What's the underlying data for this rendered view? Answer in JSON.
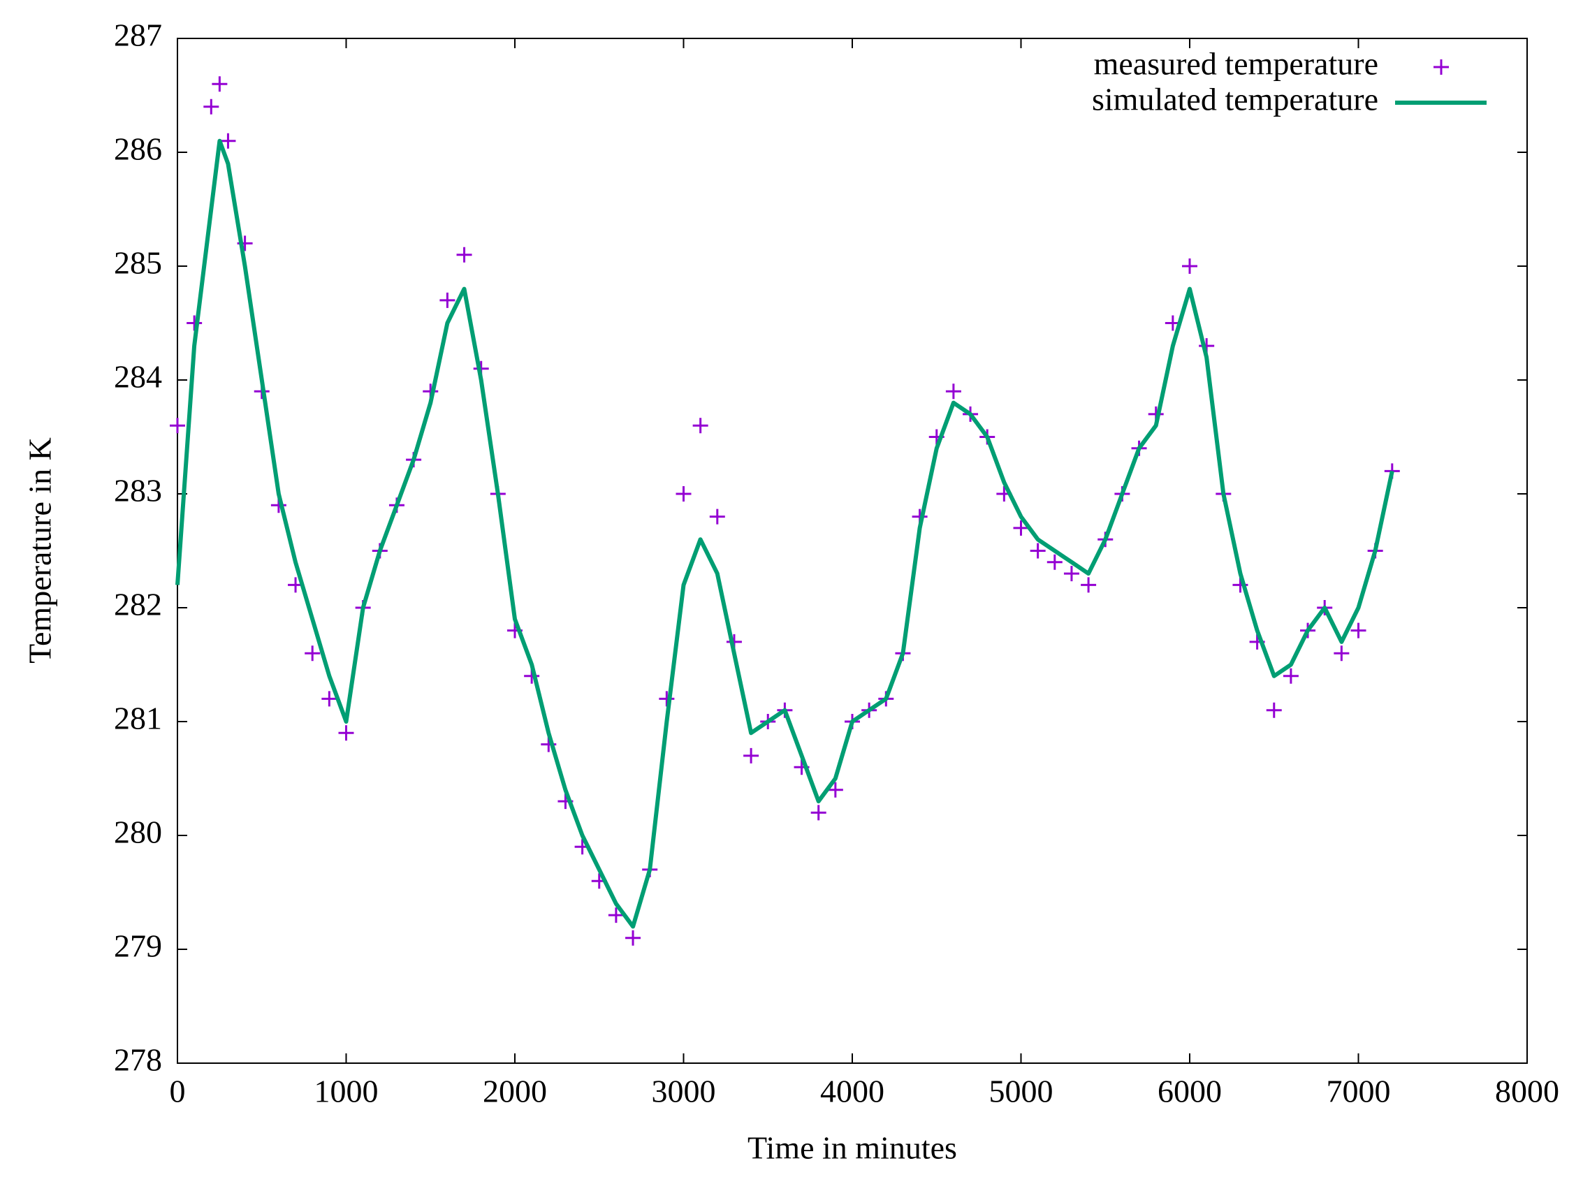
{
  "chart_data": {
    "type": "line",
    "xlabel": "Time in minutes",
    "ylabel": "Temperature in K",
    "xlim": [
      0,
      8000
    ],
    "xticks": [
      0,
      1000,
      2000,
      3000,
      4000,
      5000,
      6000,
      7000,
      8000
    ],
    "ylim": [
      278,
      287
    ],
    "yticks": [
      278,
      279,
      280,
      281,
      282,
      283,
      284,
      285,
      286,
      287
    ],
    "grid": false,
    "legend": "top-right",
    "x": [
      0,
      100,
      200,
      250,
      300,
      400,
      500,
      600,
      700,
      800,
      900,
      1000,
      1100,
      1200,
      1300,
      1400,
      1500,
      1600,
      1700,
      1800,
      1900,
      2000,
      2100,
      2200,
      2300,
      2400,
      2500,
      2600,
      2700,
      2800,
      2900,
      3000,
      3100,
      3200,
      3300,
      3400,
      3500,
      3600,
      3700,
      3800,
      3900,
      4000,
      4100,
      4200,
      4300,
      4400,
      4500,
      4600,
      4700,
      4800,
      4900,
      5000,
      5100,
      5200,
      5300,
      5400,
      5500,
      5600,
      5700,
      5800,
      5900,
      6000,
      6100,
      6200,
      6300,
      6400,
      6500,
      6600,
      6700,
      6800,
      6900,
      7000,
      7100,
      7200
    ],
    "series": [
      {
        "name": "measured temperature",
        "color": "#9400d3",
        "mode": "points",
        "values": [
          283.6,
          284.5,
          286.4,
          286.6,
          286.1,
          285.2,
          283.9,
          282.9,
          282.2,
          281.6,
          281.2,
          280.9,
          282.0,
          282.5,
          282.9,
          283.3,
          283.9,
          284.7,
          285.1,
          284.1,
          283.0,
          281.8,
          281.4,
          280.8,
          280.3,
          279.9,
          279.6,
          279.3,
          279.1,
          279.7,
          281.2,
          283.0,
          283.6,
          282.8,
          281.7,
          280.7,
          281.0,
          281.1,
          280.6,
          280.2,
          280.4,
          281.0,
          281.1,
          281.2,
          281.6,
          282.8,
          283.5,
          283.9,
          283.7,
          283.5,
          283.0,
          282.7,
          282.5,
          282.4,
          282.3,
          282.2,
          282.6,
          283.0,
          283.4,
          283.7,
          284.5,
          285.0,
          284.3,
          283.0,
          282.2,
          281.7,
          281.1,
          281.4,
          281.8,
          282.0,
          281.6,
          281.8,
          282.5,
          283.2
        ]
      },
      {
        "name": "simulated temperature",
        "color": "#009e73",
        "mode": "lines",
        "values": [
          282.2,
          284.3,
          285.5,
          286.1,
          285.9,
          285.0,
          284.0,
          283.0,
          282.4,
          281.9,
          281.4,
          281.0,
          282.0,
          282.5,
          282.9,
          283.3,
          283.8,
          284.5,
          284.8,
          284.0,
          283.0,
          281.9,
          281.5,
          280.9,
          280.4,
          280.0,
          279.7,
          279.4,
          279.2,
          279.7,
          281.0,
          282.2,
          282.6,
          282.3,
          281.6,
          280.9,
          281.0,
          281.1,
          280.7,
          280.3,
          280.5,
          281.0,
          281.1,
          281.2,
          281.6,
          282.7,
          283.4,
          283.8,
          283.7,
          283.5,
          283.1,
          282.8,
          282.6,
          282.5,
          282.4,
          282.3,
          282.6,
          283.0,
          283.4,
          283.6,
          284.3,
          284.8,
          284.2,
          283.0,
          282.3,
          281.8,
          281.4,
          281.5,
          281.8,
          282.0,
          281.7,
          282.0,
          282.5,
          283.2
        ]
      }
    ]
  }
}
